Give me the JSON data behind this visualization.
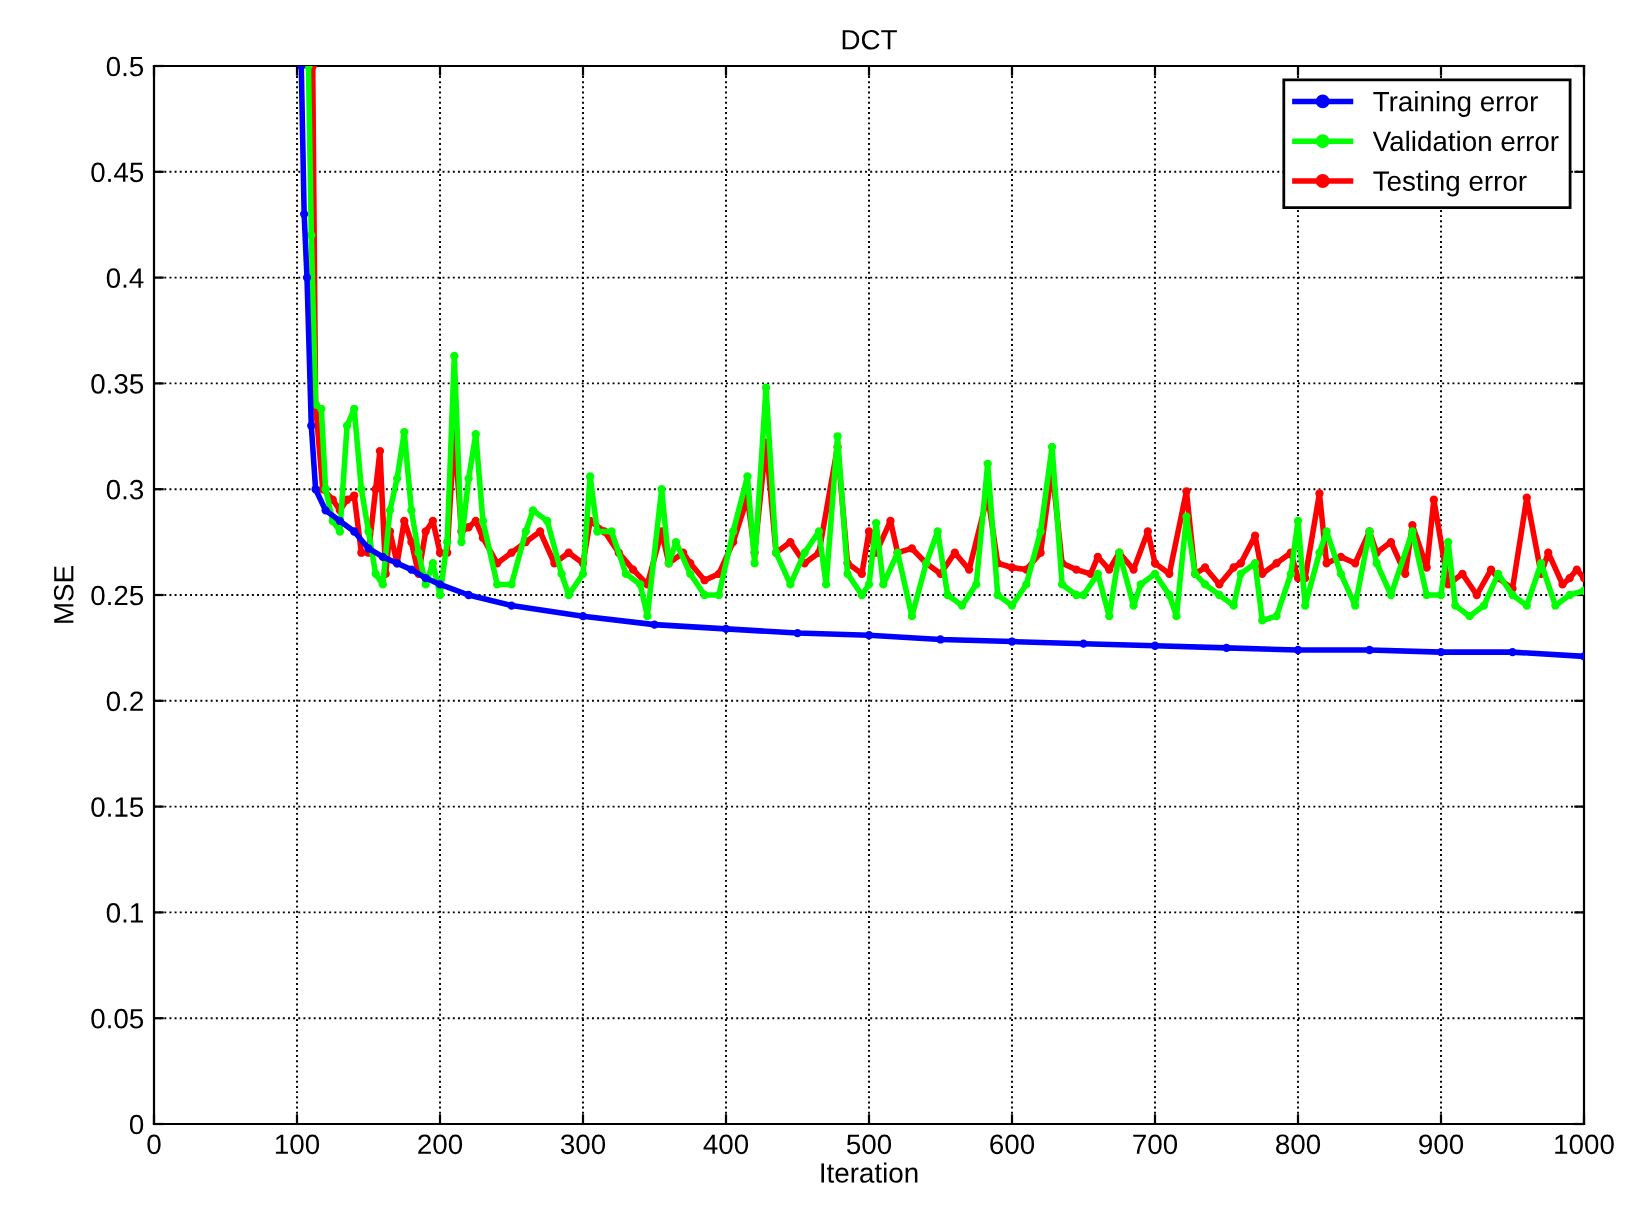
{
  "chart_data": {
    "type": "line",
    "title": "DCT",
    "xlabel": "Iteration",
    "ylabel": "MSE",
    "xlim": [
      0,
      1000
    ],
    "ylim": [
      0,
      0.5
    ],
    "xticks": [
      0,
      100,
      200,
      300,
      400,
      500,
      600,
      700,
      800,
      900,
      1000
    ],
    "yticks": [
      0,
      0.05,
      0.1,
      0.15,
      0.2,
      0.25,
      0.3,
      0.35,
      0.4,
      0.45,
      0.5
    ],
    "grid": true,
    "legend": "top right",
    "marker": "circle",
    "line_style": "solid",
    "series": [
      {
        "name": "Training error",
        "color": "#0000ff",
        "x": [
          103,
          105,
          107,
          110,
          113,
          120,
          130,
          140,
          150,
          160,
          170,
          180,
          190,
          200,
          220,
          250,
          300,
          350,
          400,
          450,
          500,
          550,
          600,
          650,
          700,
          750,
          800,
          850,
          900,
          950,
          1000
        ],
        "values": [
          0.5,
          0.43,
          0.4,
          0.33,
          0.3,
          0.29,
          0.285,
          0.28,
          0.272,
          0.268,
          0.265,
          0.262,
          0.258,
          0.255,
          0.25,
          0.245,
          0.24,
          0.236,
          0.234,
          0.232,
          0.231,
          0.229,
          0.228,
          0.227,
          0.226,
          0.225,
          0.224,
          0.224,
          0.223,
          0.223,
          0.221
        ]
      },
      {
        "name": "Validation error",
        "color": "#00ff00",
        "x": [
          108,
          110,
          113,
          117,
          120,
          125,
          130,
          135,
          140,
          145,
          150,
          155,
          160,
          165,
          170,
          175,
          180,
          185,
          190,
          195,
          200,
          205,
          210,
          215,
          220,
          225,
          230,
          240,
          250,
          260,
          265,
          275,
          285,
          290,
          300,
          305,
          310,
          320,
          330,
          340,
          345,
          355,
          360,
          365,
          375,
          385,
          395,
          405,
          415,
          420,
          428,
          435,
          445,
          455,
          465,
          470,
          478,
          485,
          495,
          500,
          505,
          510,
          520,
          530,
          540,
          548,
          555,
          565,
          575,
          583,
          590,
          600,
          610,
          620,
          628,
          635,
          645,
          650,
          660,
          668,
          675,
          685,
          690,
          700,
          710,
          715,
          722,
          728,
          735,
          745,
          755,
          760,
          770,
          775,
          785,
          795,
          800,
          805,
          815,
          820,
          830,
          840,
          850,
          855,
          865,
          880,
          890,
          900,
          905,
          910,
          920,
          930,
          940,
          950,
          960,
          970,
          980,
          990,
          1000
        ],
        "values": [
          0.5,
          0.42,
          0.34,
          0.338,
          0.3,
          0.285,
          0.28,
          0.33,
          0.338,
          0.3,
          0.28,
          0.26,
          0.255,
          0.29,
          0.305,
          0.327,
          0.29,
          0.27,
          0.255,
          0.265,
          0.25,
          0.275,
          0.363,
          0.275,
          0.305,
          0.326,
          0.285,
          0.255,
          0.255,
          0.28,
          0.29,
          0.285,
          0.26,
          0.25,
          0.26,
          0.306,
          0.28,
          0.28,
          0.26,
          0.255,
          0.24,
          0.3,
          0.265,
          0.275,
          0.26,
          0.25,
          0.25,
          0.28,
          0.306,
          0.265,
          0.348,
          0.27,
          0.255,
          0.27,
          0.28,
          0.255,
          0.325,
          0.26,
          0.25,
          0.255,
          0.284,
          0.255,
          0.27,
          0.24,
          0.265,
          0.28,
          0.25,
          0.245,
          0.255,
          0.312,
          0.25,
          0.245,
          0.255,
          0.28,
          0.32,
          0.255,
          0.25,
          0.25,
          0.26,
          0.24,
          0.27,
          0.245,
          0.255,
          0.26,
          0.25,
          0.24,
          0.287,
          0.26,
          0.255,
          0.25,
          0.245,
          0.26,
          0.265,
          0.238,
          0.24,
          0.26,
          0.285,
          0.245,
          0.27,
          0.28,
          0.26,
          0.245,
          0.28,
          0.265,
          0.25,
          0.28,
          0.25,
          0.25,
          0.275,
          0.245,
          0.24,
          0.245,
          0.26,
          0.25,
          0.245,
          0.265,
          0.245,
          0.25,
          0.252
        ]
      },
      {
        "name": "Testing error",
        "color": "#ff0000",
        "x": [
          111,
          113,
          118,
          125,
          130,
          135,
          140,
          145,
          150,
          155,
          158,
          162,
          165,
          170,
          175,
          180,
          185,
          190,
          195,
          200,
          205,
          210,
          215,
          220,
          225,
          230,
          240,
          250,
          260,
          270,
          280,
          290,
          300,
          305,
          315,
          325,
          335,
          345,
          355,
          360,
          370,
          375,
          385,
          395,
          405,
          415,
          420,
          428,
          435,
          445,
          455,
          465,
          478,
          485,
          495,
          500,
          505,
          515,
          520,
          530,
          540,
          550,
          560,
          570,
          583,
          590,
          600,
          610,
          620,
          628,
          635,
          645,
          655,
          660,
          668,
          675,
          685,
          695,
          700,
          710,
          722,
          728,
          735,
          745,
          755,
          760,
          770,
          775,
          785,
          795,
          800,
          805,
          815,
          820,
          830,
          840,
          850,
          855,
          865,
          875,
          880,
          890,
          895,
          905,
          915,
          925,
          935,
          940,
          950,
          960,
          970,
          975,
          985,
          990,
          995,
          1000
        ],
        "values": [
          0.5,
          0.34,
          0.3,
          0.295,
          0.29,
          0.295,
          0.297,
          0.27,
          0.27,
          0.3,
          0.318,
          0.26,
          0.28,
          0.265,
          0.285,
          0.275,
          0.26,
          0.28,
          0.285,
          0.27,
          0.27,
          0.327,
          0.28,
          0.282,
          0.285,
          0.277,
          0.265,
          0.27,
          0.275,
          0.28,
          0.265,
          0.27,
          0.265,
          0.285,
          0.28,
          0.27,
          0.262,
          0.255,
          0.28,
          0.265,
          0.27,
          0.265,
          0.257,
          0.26,
          0.275,
          0.296,
          0.27,
          0.322,
          0.27,
          0.275,
          0.265,
          0.27,
          0.32,
          0.265,
          0.26,
          0.28,
          0.27,
          0.285,
          0.27,
          0.272,
          0.265,
          0.26,
          0.27,
          0.262,
          0.297,
          0.265,
          0.263,
          0.262,
          0.27,
          0.31,
          0.265,
          0.262,
          0.26,
          0.268,
          0.262,
          0.27,
          0.262,
          0.28,
          0.265,
          0.26,
          0.299,
          0.26,
          0.263,
          0.255,
          0.263,
          0.265,
          0.278,
          0.26,
          0.265,
          0.27,
          0.258,
          0.258,
          0.298,
          0.265,
          0.268,
          0.265,
          0.28,
          0.27,
          0.275,
          0.26,
          0.283,
          0.263,
          0.295,
          0.255,
          0.26,
          0.25,
          0.262,
          0.258,
          0.253,
          0.296,
          0.26,
          0.27,
          0.255,
          0.258,
          0.262,
          0.258
        ]
      }
    ]
  }
}
